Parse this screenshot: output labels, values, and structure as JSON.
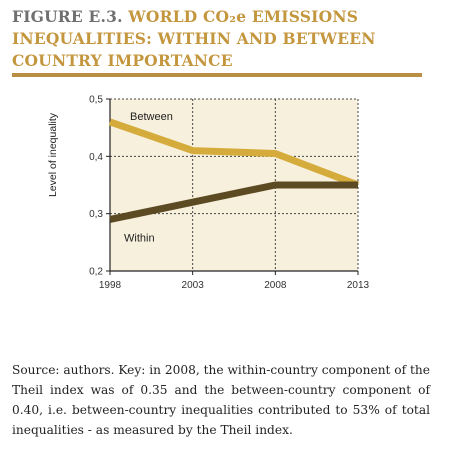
{
  "title": {
    "figure": "FIGURE E.3.",
    "text": " WORLD CO₂e EMISSIONS INEQUALITIES: WITHIN AND BETWEEN COUNTRY IMPORTANCE"
  },
  "chart_data": {
    "type": "line",
    "x": [
      "1998",
      "2003",
      "2008",
      "2013"
    ],
    "series": [
      {
        "name": "Between",
        "values": [
          0.46,
          0.41,
          0.405,
          0.35
        ],
        "color": "#d5ac3c"
      },
      {
        "name": "Within",
        "values": [
          0.29,
          0.32,
          0.35,
          0.35
        ],
        "color": "#5c4a23"
      }
    ],
    "ylabel": "Level of inequality",
    "ylim": [
      0.2,
      0.5
    ],
    "yticks": [
      "0,2",
      "0,3",
      "0,4",
      "0,5"
    ],
    "grid": true,
    "background": "#f7f0dc"
  },
  "caption": "Source: authors. Key: in 2008, the within-country component of the Theil index was of 0.35 and the between-country component of 0.40, i.e. between-country inequalities contributed to 53% of total inequalities - as measured by the Theil index."
}
